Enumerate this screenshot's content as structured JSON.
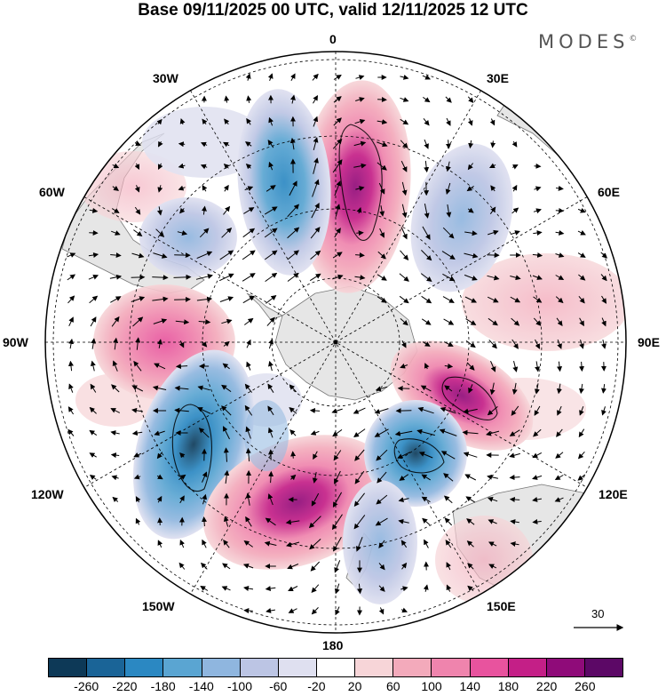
{
  "title": "Base 09/11/2025 00 UTC, valid 12/11/2025 12 UTC",
  "brand": "MODES",
  "brand_mark": "©",
  "map": {
    "projection": "south-polar-stereographic",
    "longitude_labels": {
      "top": "0",
      "bottom": "180",
      "left": "90W",
      "right": "90E",
      "upper_left_1": "30W",
      "upper_left_2": "60W",
      "lower_left_1": "120W",
      "lower_left_2": "150W",
      "upper_right_1": "30E",
      "upper_right_2": "60E",
      "lower_right_1": "120E",
      "lower_right_2": "150E"
    },
    "anomaly_centers": [
      {
        "sector": "0",
        "sign": "positive",
        "level": 260
      },
      {
        "sector": "20W",
        "sign": "negative",
        "level": -140
      },
      {
        "sector": "50W",
        "sign": "negative",
        "level": -100
      },
      {
        "sector": "45E",
        "sign": "negative",
        "level": -100
      },
      {
        "sector": "85W",
        "sign": "positive",
        "level": 180
      },
      {
        "sector": "115W",
        "sign": "negative",
        "level": -260
      },
      {
        "sector": "165W",
        "sign": "positive",
        "level": 220
      },
      {
        "sector": "110E",
        "sign": "positive",
        "level": 260
      },
      {
        "sector": "135E",
        "sign": "negative",
        "level": -220
      },
      {
        "sector": "160E",
        "sign": "negative",
        "level": -100
      }
    ]
  },
  "reference_vector": {
    "value": "30"
  },
  "colorbar": {
    "colors": [
      "#0d3957",
      "#1a6497",
      "#2b88c2",
      "#5aa5d2",
      "#8fb6df",
      "#bcc5e4",
      "#dfe0f0",
      "#ffffff",
      "#f7d5d8",
      "#f3aabb",
      "#ef84ad",
      "#e8539e",
      "#c41f87",
      "#8f0b79",
      "#5c0866"
    ],
    "tick_labels": [
      "-260",
      "-220",
      "-180",
      "-140",
      "-100",
      "-60",
      "-20",
      "20",
      "60",
      "100",
      "140",
      "180",
      "220",
      "260"
    ]
  },
  "colors": {
    "land": "#e6e6e6",
    "grid": "#000000",
    "vector": "#000000"
  }
}
